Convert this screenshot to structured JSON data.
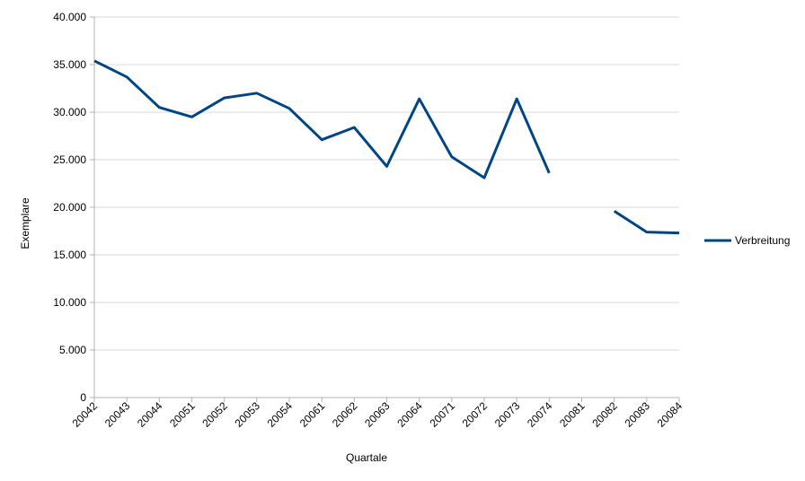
{
  "chart_data": {
    "type": "line",
    "title": "",
    "xlabel": "Quartale",
    "ylabel": "Exemplare",
    "ylim": [
      0,
      40000
    ],
    "y_ticks": [
      "0",
      "5.000",
      "10.000",
      "15.000",
      "20.000",
      "25.000",
      "30.000",
      "35.000",
      "40.000"
    ],
    "y_tick_values": [
      0,
      5000,
      10000,
      15000,
      20000,
      25000,
      30000,
      35000,
      40000
    ],
    "grid": true,
    "legend_position": "right",
    "categories": [
      "20042",
      "20043",
      "20044",
      "20051",
      "20052",
      "20053",
      "20054",
      "20061",
      "20062",
      "20063",
      "20064",
      "20071",
      "20072",
      "20073",
      "20074",
      "20081",
      "20082",
      "20083",
      "20084"
    ],
    "series": [
      {
        "name": "Verbreitung",
        "color": "#004586",
        "values": [
          35400,
          33700,
          30500,
          29500,
          31500,
          32000,
          30400,
          27100,
          28400,
          24300,
          31400,
          25300,
          23100,
          31400,
          23600,
          null,
          19600,
          17400,
          17300
        ]
      }
    ]
  }
}
